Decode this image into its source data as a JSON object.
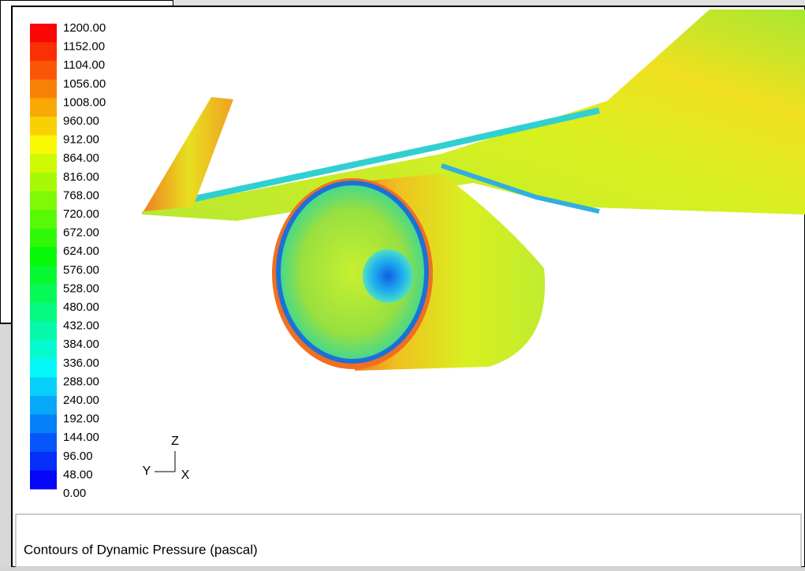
{
  "colorbar": {
    "labels": [
      "1200.00",
      "1152.00",
      "1104.00",
      "1056.00",
      "1008.00",
      "960.00",
      "912.00",
      "864.00",
      "816.00",
      "768.00",
      "720.00",
      "672.00",
      "624.00",
      "576.00",
      "528.00",
      "480.00",
      "432.00",
      "384.00",
      "336.00",
      "288.00",
      "240.00",
      "192.00",
      "144.00",
      "96.00",
      "48.00",
      "0.00"
    ]
  },
  "axes": {
    "z": "Z",
    "y": "Y",
    "x": "X"
  },
  "caption": "Contours of Dynamic Pressure (pascal)"
}
